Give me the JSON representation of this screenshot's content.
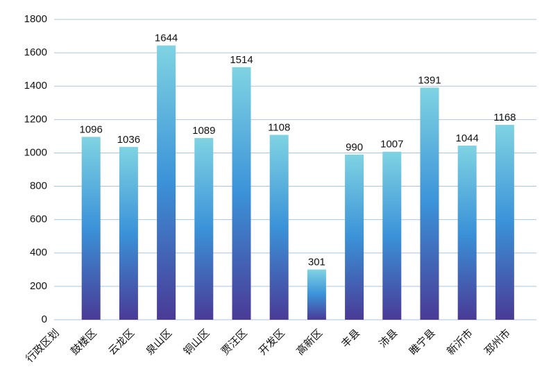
{
  "chart_data": {
    "type": "bar",
    "categories": [
      "行政区划",
      "鼓楼区",
      "云龙区",
      "泉山区",
      "铜山区",
      "贾汪区",
      "开发区",
      "高新区",
      "丰县",
      "沛县",
      "睢宁县",
      "新沂市",
      "邳州市"
    ],
    "values": [
      null,
      1096,
      1036,
      1644,
      1089,
      1514,
      1108,
      301,
      990,
      1007,
      1391,
      1044,
      1168
    ],
    "gradient": [
      "#7fd3e2",
      "#3b92d8",
      "#4a3a96"
    ],
    "ylim": [
      0,
      1800
    ],
    "yticks": [
      0,
      200,
      400,
      600,
      800,
      1000,
      1200,
      1400,
      1600,
      1800
    ],
    "grid": true
  }
}
